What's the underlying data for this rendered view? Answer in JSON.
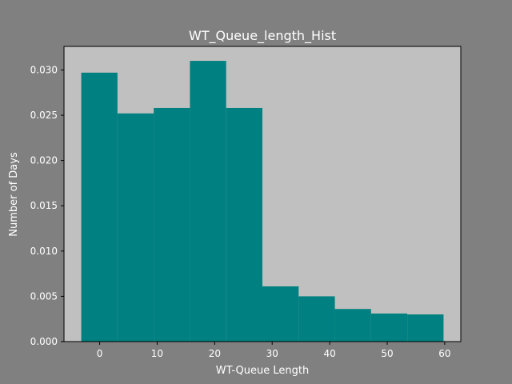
{
  "chart_data": {
    "type": "bar",
    "title": "WT_Queue_length_Hist",
    "xlabel": "WT-Queue Length",
    "ylabel": "Number of Days",
    "xlim": [
      -6.2,
      62.8
    ],
    "ylim": [
      0,
      0.0326
    ],
    "x_ticks": [
      0,
      10,
      20,
      30,
      40,
      50,
      60
    ],
    "y_ticks": [
      0.0,
      0.005,
      0.01,
      0.015,
      0.02,
      0.025,
      0.03
    ],
    "x_tick_labels": [
      "0",
      "10",
      "20",
      "30",
      "40",
      "50",
      "60"
    ],
    "y_tick_labels": [
      "0.000",
      "0.005",
      "0.010",
      "0.015",
      "0.020",
      "0.025",
      "0.030"
    ],
    "bins": [
      {
        "x0": -3.2,
        "x1": 3.1,
        "value": 0.0297
      },
      {
        "x0": 3.1,
        "x1": 9.4,
        "value": 0.0252
      },
      {
        "x0": 9.4,
        "x1": 15.7,
        "value": 0.0258
      },
      {
        "x0": 15.7,
        "x1": 22.0,
        "value": 0.031
      },
      {
        "x0": 22.0,
        "x1": 28.3,
        "value": 0.0258
      },
      {
        "x0": 28.3,
        "x1": 34.6,
        "value": 0.0061
      },
      {
        "x0": 34.6,
        "x1": 40.9,
        "value": 0.005
      },
      {
        "x0": 40.9,
        "x1": 47.2,
        "value": 0.0036
      },
      {
        "x0": 47.2,
        "x1": 53.5,
        "value": 0.0031
      },
      {
        "x0": 53.5,
        "x1": 59.8,
        "value": 0.003
      }
    ],
    "bar_color": "#008080",
    "plot_background": "#c0c0c0",
    "figure_background": "#808080",
    "grid": false,
    "legend": "none"
  }
}
